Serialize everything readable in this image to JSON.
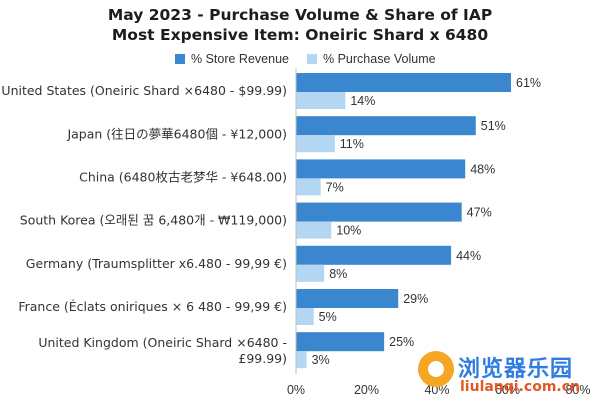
{
  "chart_data": {
    "type": "bar",
    "orientation": "horizontal",
    "title": "May 2023 - Purchase Volume & Share of IAP",
    "subtitle": "Most Expensive Item: Oneiric Shard x 6480",
    "categories": [
      "United States (Oneiric Shard ×6480 - $99.99)",
      "Japan (往日の夢華6480個 - ¥12,000)",
      "China (6480枚古老梦华 - ¥648.00)",
      "South Korea (오래된 꿈 6,480개 - ₩119,000)",
      "Germany (Traumsplitter x6.480 - 99,99 €)",
      "France (Éclats oniriques × 6 480 - 99,99 €)",
      "United Kingdom (Oneiric Shard ×6480 - £99.99)"
    ],
    "category_lines": [
      [
        "United States (Oneiric Shard ×6480 - $99.99)"
      ],
      [
        "Japan (往日の夢華6480個 - ¥12,000)"
      ],
      [
        "China (6480枚古老梦华 - ¥648.00)"
      ],
      [
        "South Korea (오래된 꿈 6,480개 - ₩119,000)"
      ],
      [
        "Germany (Traumsplitter x6.480 - 99,99 €)"
      ],
      [
        "France (Éclats oniriques × 6 480 - 99,99 €)"
      ],
      [
        "United Kingdom (Oneiric Shard ×6480 -",
        "£99.99)"
      ]
    ],
    "series": [
      {
        "name": "% Store Revenue",
        "color": "#3a87d0",
        "values": [
          61,
          51,
          48,
          47,
          44,
          29,
          25
        ],
        "labels": [
          "61%",
          "51%",
          "48%",
          "47%",
          "44%",
          "29%",
          "25%"
        ]
      },
      {
        "name": "% Purchase Volume",
        "color": "#b3d6f2",
        "values": [
          14,
          11,
          7,
          10,
          8,
          5,
          3
        ],
        "labels": [
          "14%",
          "11%",
          "7%",
          "10%",
          "8%",
          "5%",
          "3%"
        ]
      }
    ],
    "xlim": [
      0,
      80
    ],
    "x_ticks": [
      "0%",
      "20%",
      "40%",
      "60%",
      "80%"
    ],
    "x_tick_values": [
      0,
      20,
      40,
      60,
      80
    ],
    "grid": false,
    "legend_position": "top"
  },
  "watermark": {
    "line1": "浏览器乐园",
    "line2": "liulanqi.com.cn"
  }
}
